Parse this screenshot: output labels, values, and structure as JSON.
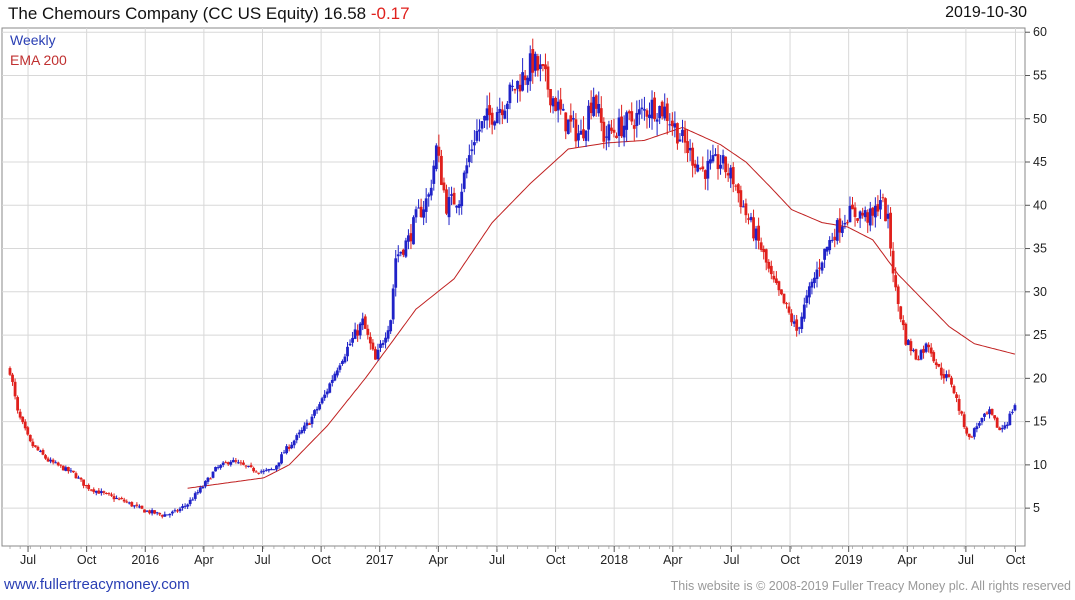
{
  "header": {
    "title": "The Chemours  Company (CC US Equity)",
    "last": "16.58",
    "change": "-0.17",
    "date": "2019-10-30"
  },
  "legend": {
    "series1": "Weekly",
    "series2": "EMA 200"
  },
  "footer": {
    "site": "www.fullertreacymoney.com",
    "copyright": "This website is © 2008-2019 Fuller Treacy Money plc. All rights reserved"
  },
  "colors": {
    "up": "#1f22c8",
    "down": "#e0201c",
    "ema": "#c02020",
    "grid": "#d8d8d8"
  },
  "chart_data": {
    "type": "candlestick",
    "title": "The Chemours  Company (CC US Equity)",
    "frequency": "Weekly",
    "ylim": [
      2,
      60
    ],
    "y_ticks": [
      5,
      10,
      15,
      20,
      25,
      30,
      35,
      40,
      45,
      50,
      55,
      60
    ],
    "x_ticks": [
      "Jul",
      "Oct",
      "2016",
      "Apr",
      "Jul",
      "Oct",
      "2017",
      "Apr",
      "Jul",
      "Oct",
      "2018",
      "Apr",
      "Jul",
      "Oct",
      "2019",
      "Apr",
      "Jul",
      "Oct"
    ],
    "close_series": {
      "name": "Weekly close",
      "points": [
        [
          0,
          21
        ],
        [
          3,
          16
        ],
        [
          8,
          12.5
        ],
        [
          15,
          10.5
        ],
        [
          25,
          9
        ],
        [
          30,
          7.5
        ],
        [
          38,
          6.5
        ],
        [
          45,
          5.8
        ],
        [
          52,
          4.8
        ],
        [
          60,
          4.2
        ],
        [
          65,
          4.5
        ],
        [
          70,
          5.5
        ],
        [
          76,
          7.5
        ],
        [
          81,
          9.5
        ],
        [
          87,
          10.5
        ],
        [
          95,
          9.5
        ],
        [
          100,
          9.2
        ],
        [
          104,
          9.5
        ],
        [
          108,
          11.5
        ],
        [
          114,
          13.5
        ],
        [
          118,
          15
        ],
        [
          124,
          18
        ],
        [
          130,
          22
        ],
        [
          136,
          25
        ],
        [
          139,
          26.5
        ],
        [
          144,
          22
        ],
        [
          150,
          27
        ],
        [
          152,
          34
        ],
        [
          157,
          36
        ],
        [
          160,
          38.5
        ],
        [
          165,
          41
        ],
        [
          168,
          46.5
        ],
        [
          172,
          40
        ],
        [
          177,
          41
        ],
        [
          183,
          48
        ],
        [
          188,
          50
        ],
        [
          195,
          52
        ],
        [
          200,
          54
        ],
        [
          206,
          56.5
        ],
        [
          210,
          55
        ],
        [
          213,
          53
        ],
        [
          218,
          50
        ],
        [
          225,
          48
        ],
        [
          230,
          53
        ],
        [
          234,
          48
        ],
        [
          240,
          49
        ],
        [
          246,
          50
        ],
        [
          253,
          51.5
        ],
        [
          258,
          51
        ],
        [
          262,
          49
        ],
        [
          268,
          46
        ],
        [
          273,
          44
        ],
        [
          280,
          45
        ],
        [
          285,
          43
        ],
        [
          290,
          39
        ],
        [
          296,
          35
        ],
        [
          300,
          31.5
        ],
        [
          306,
          28
        ],
        [
          310,
          25.5
        ],
        [
          315,
          30
        ],
        [
          320,
          34
        ],
        [
          325,
          37
        ],
        [
          330,
          39
        ],
        [
          335,
          39
        ],
        [
          340,
          38.5
        ],
        [
          343,
          41
        ],
        [
          346,
          38
        ],
        [
          349,
          30
        ],
        [
          353,
          24.5
        ],
        [
          357,
          22.5
        ],
        [
          362,
          24
        ],
        [
          366,
          21
        ],
        [
          371,
          19.5
        ],
        [
          375,
          15.5
        ],
        [
          378,
          13
        ],
        [
          382,
          15
        ],
        [
          386,
          16
        ],
        [
          390,
          14
        ],
        [
          393,
          15
        ],
        [
          396,
          17
        ]
      ]
    },
    "ema_series": {
      "name": "EMA 200",
      "points": [
        [
          70,
          7.3
        ],
        [
          85,
          7.9
        ],
        [
          100,
          8.5
        ],
        [
          110,
          10
        ],
        [
          125,
          14.5
        ],
        [
          140,
          20
        ],
        [
          160,
          28
        ],
        [
          175,
          31.5
        ],
        [
          190,
          38
        ],
        [
          205,
          42.5
        ],
        [
          220,
          46.5
        ],
        [
          235,
          47.2
        ],
        [
          250,
          47.5
        ],
        [
          265,
          49
        ],
        [
          280,
          47
        ],
        [
          290,
          45
        ],
        [
          300,
          42
        ],
        [
          308,
          39.5
        ],
        [
          320,
          38
        ],
        [
          330,
          37.5
        ],
        [
          340,
          36
        ],
        [
          350,
          32
        ],
        [
          360,
          29
        ],
        [
          370,
          26
        ],
        [
          380,
          24
        ],
        [
          396,
          22.8
        ]
      ]
    }
  }
}
